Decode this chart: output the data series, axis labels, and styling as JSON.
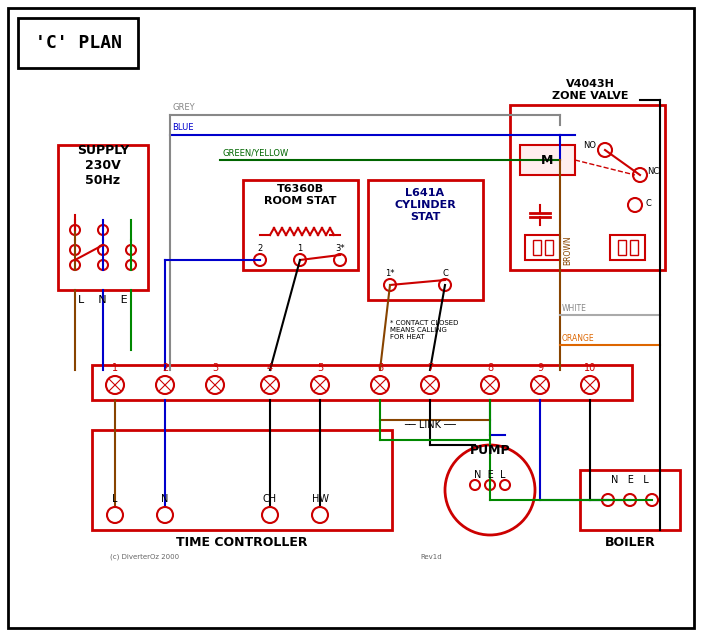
{
  "title": "'C' PLAN",
  "bg_color": "#ffffff",
  "border_color": "#000000",
  "red": "#cc0000",
  "blue": "#0000cc",
  "green": "#008800",
  "grey": "#888888",
  "brown": "#884400",
  "orange": "#dd6600",
  "black": "#000000",
  "white_wire": "#aaaaaa",
  "supply_text": "SUPPLY\n230V\n50Hz",
  "supply_lne": "L    N    E",
  "zone_valve_title": "V4043H\nZONE VALVE",
  "room_stat_title": "T6360B\nROOM STAT",
  "cyl_stat_title": "L641A\nCYLINDER\nSTAT",
  "time_ctrl_title": "TIME CONTROLLER",
  "pump_title": "PUMP",
  "boiler_title": "BOILER",
  "link_text": "LINK",
  "copyright": "(c) DiverterOz 2000",
  "rev": "Rev1d"
}
